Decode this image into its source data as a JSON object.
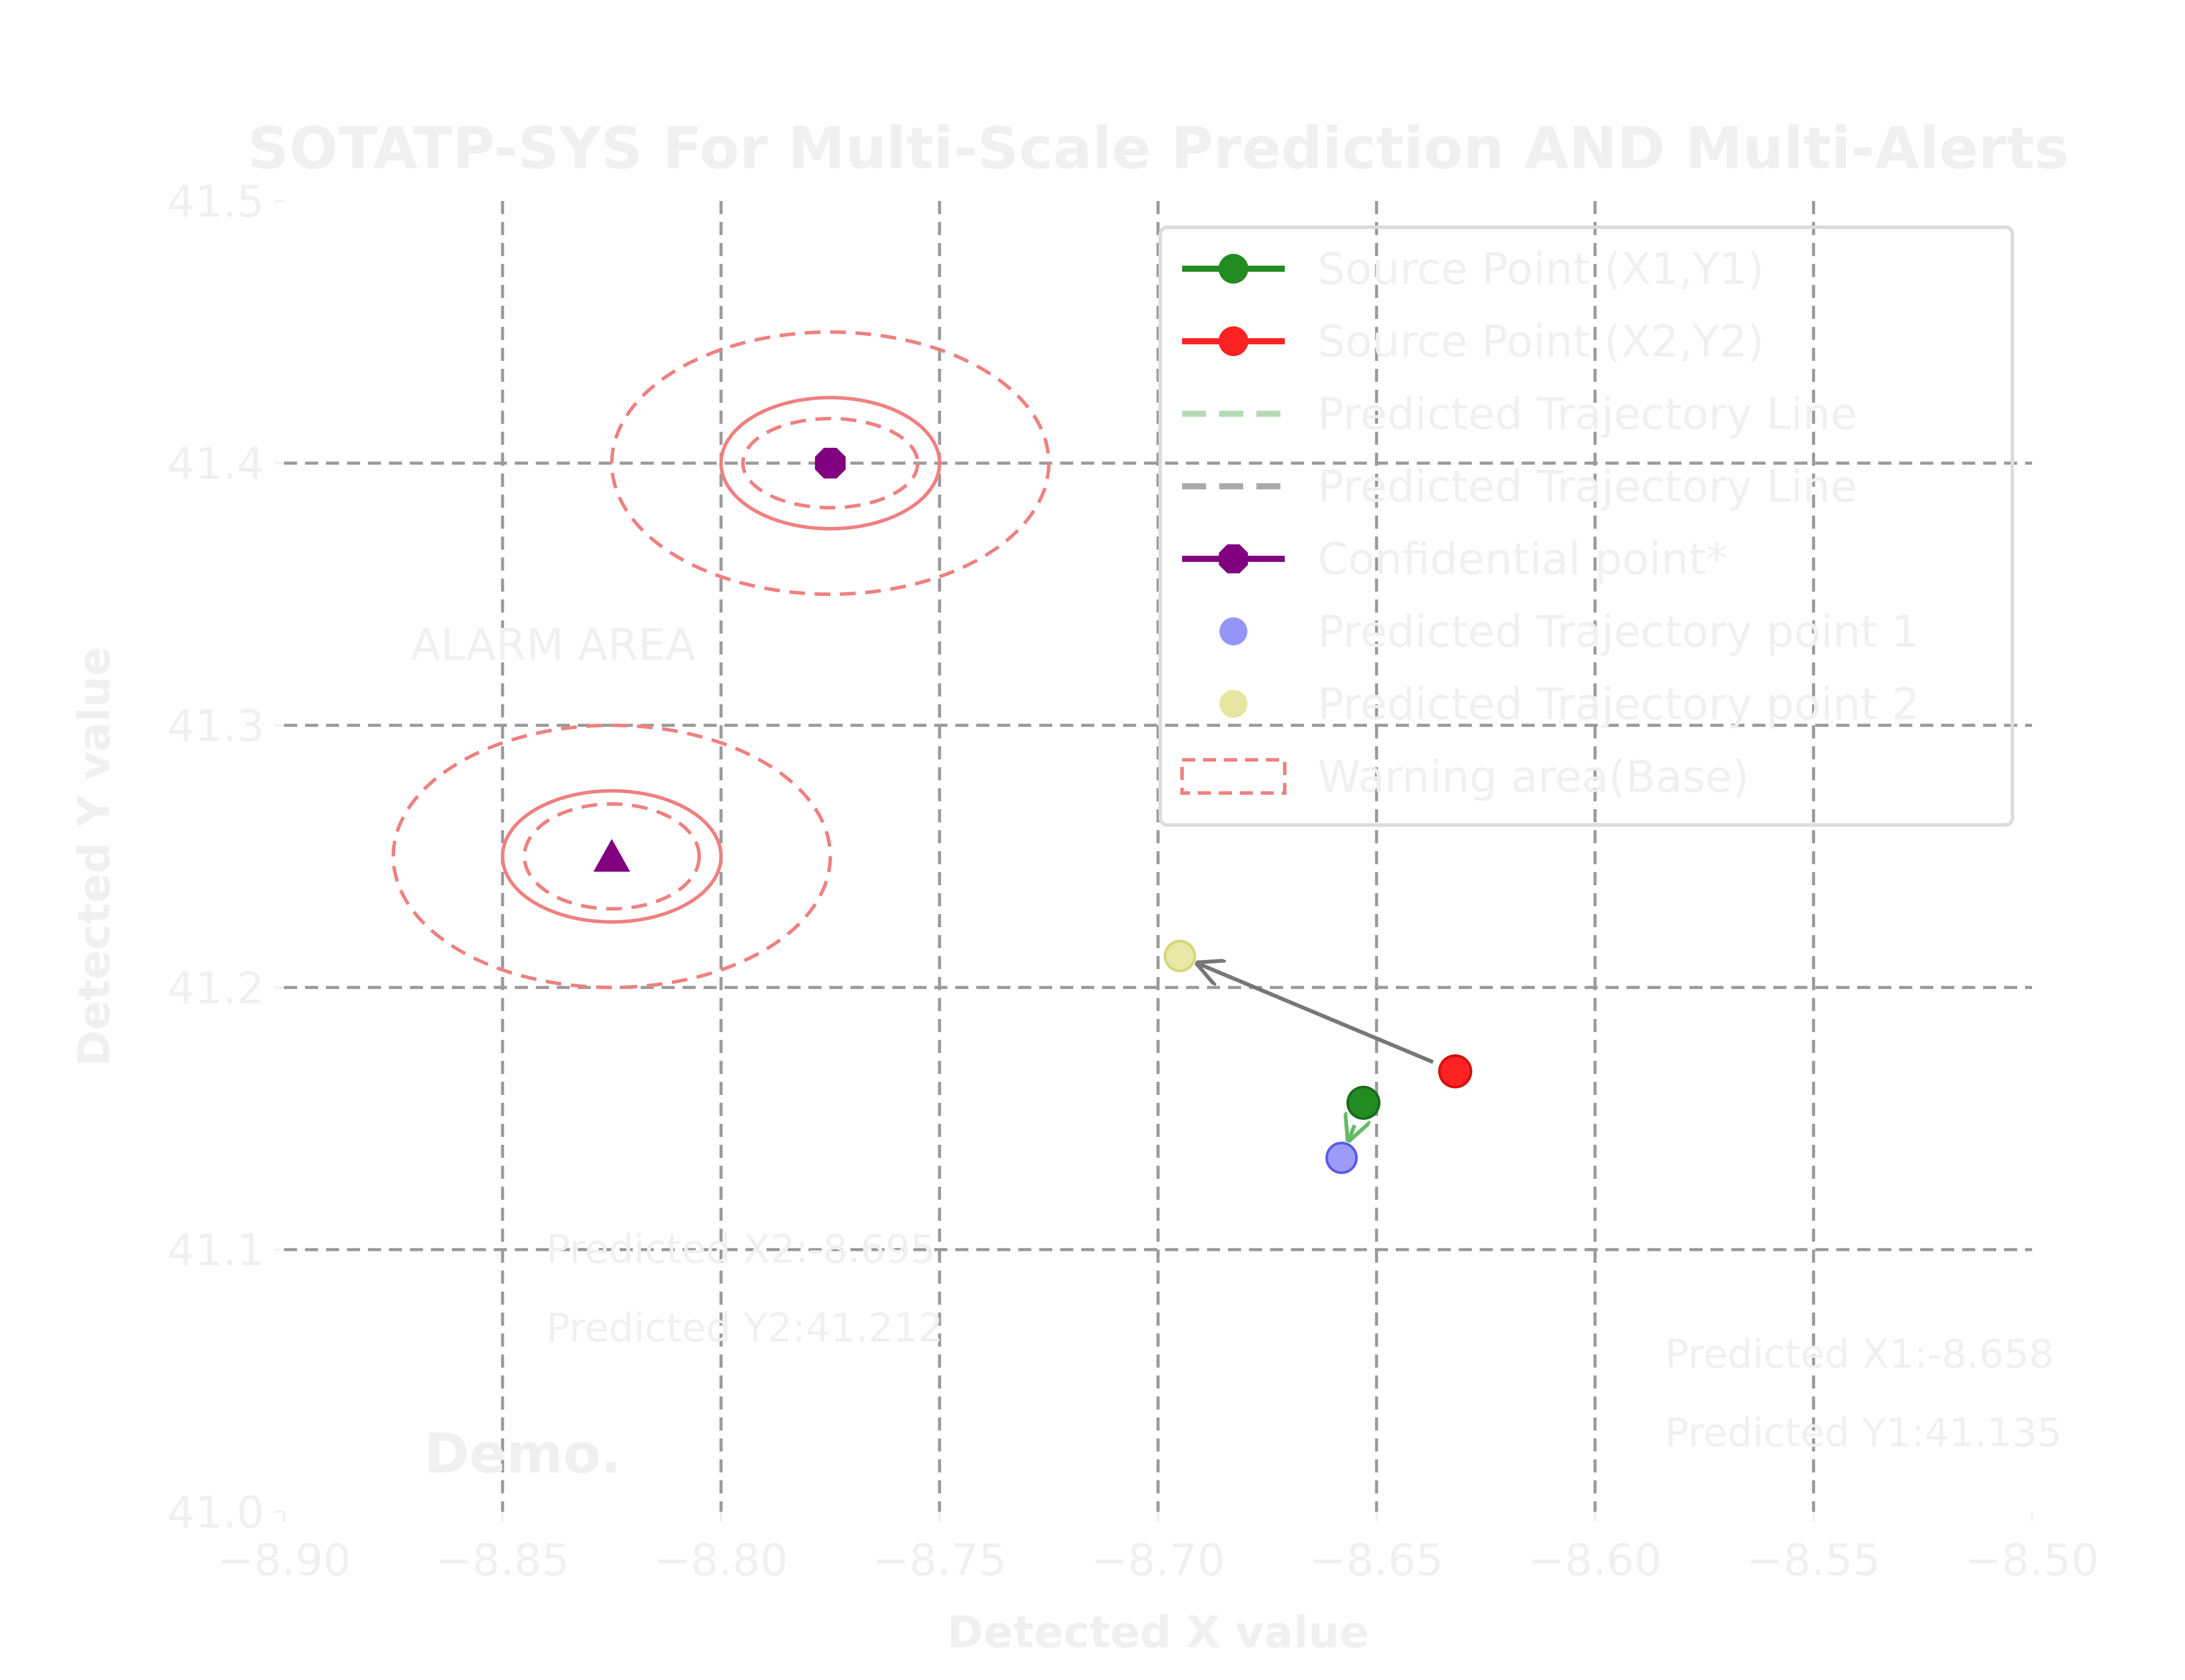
{
  "chart_data": {
    "type": "scatter",
    "title": "SOTATP-SYS For Multi-Scale Prediction AND Multi-Alerts",
    "xlabel": "Detected X value",
    "ylabel": "Detected Y value",
    "xlim": [
      -8.9,
      -8.5
    ],
    "ylim": [
      41.0,
      41.5
    ],
    "x_ticks": [
      -8.9,
      -8.85,
      -8.8,
      -8.75,
      -8.7,
      -8.65,
      -8.6,
      -8.55,
      -8.5
    ],
    "x_tick_labels": [
      "−8.90",
      "−8.85",
      "−8.80",
      "−8.75",
      "−8.70",
      "−8.65",
      "−8.60",
      "−8.55",
      "−8.50"
    ],
    "y_ticks": [
      41.0,
      41.1,
      41.2,
      41.3,
      41.4,
      41.5
    ],
    "y_tick_labels": [
      "41.0",
      "41.1",
      "41.2",
      "41.3",
      "41.4",
      "41.5"
    ],
    "grid": true,
    "legend_position": "top-right",
    "legend": [
      {
        "label": "Source Point (X1,Y1)",
        "kind": "line-marker",
        "color": "#228b22"
      },
      {
        "label": "Source Point (X2,Y2)",
        "kind": "line-marker",
        "color": "#ff2222"
      },
      {
        "label": "Predicted Trajectory Line",
        "kind": "dashed-line",
        "color": "#b5d9b5"
      },
      {
        "label": "Predicted Trajectory Line",
        "kind": "dashed-line",
        "color": "#aaaaaa"
      },
      {
        "label": "Confidential point*",
        "kind": "line-marker",
        "color": "#800080"
      },
      {
        "label": "Predicted Trajectory point 1",
        "kind": "marker",
        "color": "#7b7bf5"
      },
      {
        "label": "Predicted Trajectory point 2",
        "kind": "marker",
        "color": "#e0e08a"
      },
      {
        "label": "Warning area(Base)",
        "kind": "dashed-box",
        "color": "#f08080"
      }
    ],
    "points": {
      "source_1": {
        "x": -8.653,
        "y": 41.156,
        "color": "#228b22"
      },
      "source_2": {
        "x": -8.632,
        "y": 41.168,
        "color": "#ff2222"
      },
      "predicted_1": {
        "x": -8.658,
        "y": 41.135,
        "color": "#7b7bf5"
      },
      "predicted_2": {
        "x": -8.695,
        "y": 41.212,
        "color": "#e0e08a"
      },
      "confidential": {
        "x": -8.775,
        "y": 41.4,
        "color": "#800080"
      },
      "alarm_triangle": {
        "x": -8.825,
        "y": 41.25,
        "color": "#800080"
      }
    },
    "trajectories": [
      {
        "from": "source_1",
        "to": "predicted_1",
        "color": "#66bb66"
      },
      {
        "from": "source_2",
        "to": "predicted_2",
        "color": "#777777"
      }
    ],
    "warning_areas": [
      {
        "center": [
          -8.775,
          41.4
        ],
        "rings": [
          {
            "rx": 0.05,
            "ry": 0.05,
            "style": "dashed"
          },
          {
            "rx": 0.025,
            "ry": 0.025,
            "style": "solid"
          },
          {
            "rx": 0.02,
            "ry": 0.017,
            "style": "dashed"
          }
        ]
      },
      {
        "center": [
          -8.825,
          41.25
        ],
        "rings": [
          {
            "rx": 0.05,
            "ry": 0.05,
            "style": "dashed"
          },
          {
            "rx": 0.025,
            "ry": 0.025,
            "style": "solid"
          },
          {
            "rx": 0.02,
            "ry": 0.02,
            "style": "dashed"
          }
        ]
      }
    ],
    "ring_color": "#f08080",
    "annotations": [
      {
        "text": "ALARM AREA",
        "x": -8.871,
        "y": 41.325,
        "weight": "normal",
        "scale": 1.0
      },
      {
        "text": "Predicted X2:-8.695",
        "x": -8.84,
        "y": 41.095,
        "weight": "normal",
        "scale": 0.9
      },
      {
        "text": "Predicted Y2:41.212",
        "x": -8.84,
        "y": 41.065,
        "weight": "normal",
        "scale": 0.9
      },
      {
        "text": "Predicted X1:-8.658",
        "x": -8.584,
        "y": 41.055,
        "weight": "normal",
        "scale": 0.9
      },
      {
        "text": "Predicted Y1:41.135",
        "x": -8.584,
        "y": 41.025,
        "weight": "normal",
        "scale": 0.9
      },
      {
        "text": "Demo.",
        "x": -8.868,
        "y": 41.015,
        "weight": "bold",
        "scale": 1.25
      }
    ]
  }
}
